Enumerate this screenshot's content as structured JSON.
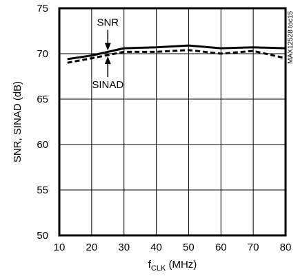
{
  "chart_data": {
    "type": "line",
    "xlabel_main": "f",
    "xlabel_sub": "CLK",
    "xlabel_unit": " (MHz)",
    "ylabel": "SNR, SINAD (dB)",
    "xlim": [
      10,
      80
    ],
    "ylim": [
      50,
      75
    ],
    "xticks": [
      10,
      20,
      30,
      40,
      50,
      60,
      70,
      80
    ],
    "yticks": [
      50,
      55,
      60,
      65,
      70,
      75
    ],
    "grid": true,
    "side_note": "MAX12528 toc15",
    "series": [
      {
        "name": "SNR",
        "style": "solid",
        "color": "#000000",
        "x": [
          12.5,
          20,
          30,
          40,
          50,
          60,
          70,
          80
        ],
        "y": [
          69.4,
          69.8,
          70.6,
          70.7,
          70.9,
          70.6,
          70.7,
          70.6
        ]
      },
      {
        "name": "SINAD",
        "style": "dashed",
        "color": "#000000",
        "x": [
          12.5,
          20,
          30,
          40,
          50,
          60,
          70,
          80
        ],
        "y": [
          69.0,
          69.5,
          70.2,
          70.2,
          70.4,
          70.0,
          70.3,
          69.5
        ]
      }
    ],
    "annotations": [
      {
        "text": "SNR",
        "target_series": "SNR",
        "x": 25,
        "direction": "down"
      },
      {
        "text": "SINAD",
        "target_series": "SINAD",
        "x": 25,
        "direction": "up"
      }
    ]
  }
}
